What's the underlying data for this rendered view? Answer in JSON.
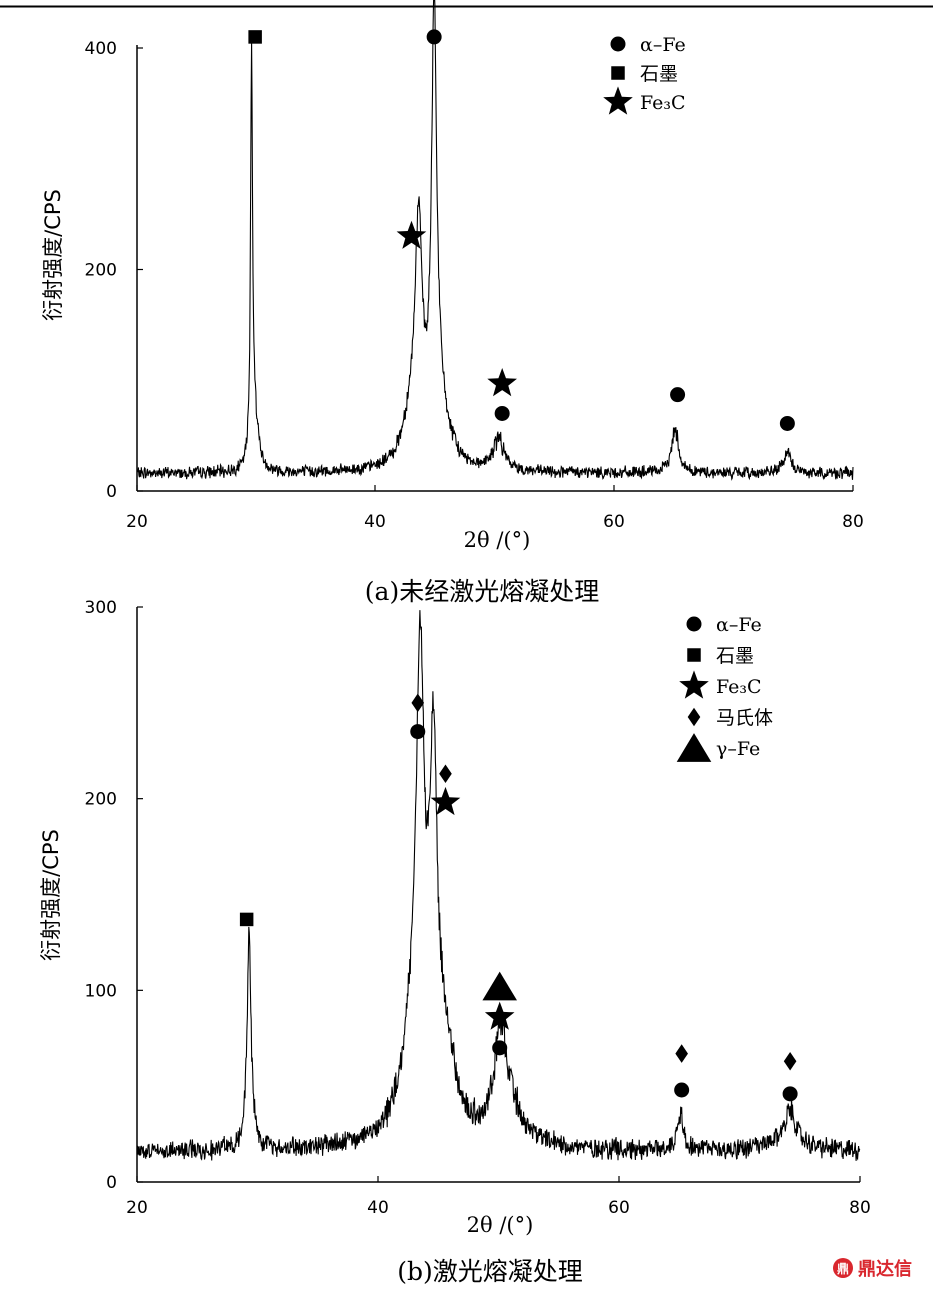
{
  "chart_data": [
    {
      "id": "a",
      "type": "line",
      "caption": "(a)未经激光熔凝处理",
      "xlabel": "2θ /(°)",
      "ylabel": "衍射强度/CPS",
      "xlim": [
        20,
        80
      ],
      "ylim": [
        0,
        400
      ],
      "xticks": [
        20,
        40,
        60,
        80
      ],
      "yticks": [
        0,
        200,
        400
      ],
      "grid": false,
      "legend_position": "top-right",
      "legend": [
        {
          "marker": "circle",
          "label": "α–Fe"
        },
        {
          "marker": "square",
          "label": "石墨"
        },
        {
          "marker": "star",
          "label": "Fe₃C"
        }
      ],
      "baseline": 16,
      "peaks": [
        {
          "x": 29.6,
          "height": 368,
          "width": 0.1
        },
        {
          "x": 29.9,
          "height": 44,
          "width": 0.35
        },
        {
          "x": 43.6,
          "height": 192,
          "width": 0.35
        },
        {
          "x": 43.0,
          "height": 40,
          "width": 0.9
        },
        {
          "x": 44.9,
          "height": 364,
          "width": 0.25
        },
        {
          "x": 45.2,
          "height": 60,
          "width": 0.9
        },
        {
          "x": 50.3,
          "height": 28,
          "width": 0.55
        },
        {
          "x": 65.1,
          "height": 40,
          "width": 0.35
        },
        {
          "x": 74.5,
          "height": 18,
          "width": 0.4
        }
      ],
      "annotations": [
        {
          "marker": "square",
          "x": 29.9,
          "y": 410
        },
        {
          "marker": "circle",
          "x": 44.9,
          "y": 410
        },
        {
          "marker": "star",
          "x": 43.0,
          "y": 230
        },
        {
          "marker": "star",
          "x": 50.6,
          "y": 97
        },
        {
          "marker": "circle",
          "x": 50.6,
          "y": 70
        },
        {
          "marker": "circle",
          "x": 65.3,
          "y": 87
        },
        {
          "marker": "circle",
          "x": 74.5,
          "y": 61
        }
      ]
    },
    {
      "id": "b",
      "type": "line",
      "caption": "(b)激光熔凝处理",
      "xlabel": "2θ /(°)",
      "ylabel": "衍射强度/CPS",
      "xlim": [
        20,
        80
      ],
      "ylim": [
        0,
        300
      ],
      "xticks": [
        20,
        40,
        60,
        80
      ],
      "yticks": [
        0,
        100,
        200,
        300
      ],
      "grid": false,
      "legend_position": "top-right",
      "legend": [
        {
          "marker": "circle",
          "label": "α–Fe"
        },
        {
          "marker": "square",
          "label": "石墨"
        },
        {
          "marker": "star",
          "label": "Fe₃C"
        },
        {
          "marker": "diamond",
          "label": "马氏体"
        },
        {
          "marker": "triangle",
          "label": "γ–Fe"
        }
      ],
      "baseline": 16,
      "peaks": [
        {
          "x": 29.3,
          "height": 108,
          "width": 0.22
        },
        {
          "x": 43.5,
          "height": 196,
          "width": 0.4
        },
        {
          "x": 43.2,
          "height": 60,
          "width": 1.3
        },
        {
          "x": 44.6,
          "height": 160,
          "width": 0.35
        },
        {
          "x": 45.5,
          "height": 40,
          "width": 1.1
        },
        {
          "x": 50.2,
          "height": 52,
          "width": 0.65
        },
        {
          "x": 51.0,
          "height": 14,
          "width": 1.3
        },
        {
          "x": 65.1,
          "height": 20,
          "width": 0.3
        },
        {
          "x": 74.2,
          "height": 16,
          "width": 0.5
        },
        {
          "x": 74.0,
          "height": 6,
          "width": 1.5
        }
      ],
      "annotations": [
        {
          "marker": "square",
          "x": 29.1,
          "y": 137
        },
        {
          "marker": "diamond",
          "x": 43.3,
          "y": 250
        },
        {
          "marker": "circle",
          "x": 43.3,
          "y": 235
        },
        {
          "marker": "diamond",
          "x": 45.6,
          "y": 213
        },
        {
          "marker": "star",
          "x": 45.6,
          "y": 198
        },
        {
          "marker": "triangle",
          "x": 50.1,
          "y": 102
        },
        {
          "marker": "star",
          "x": 50.1,
          "y": 86
        },
        {
          "marker": "circle",
          "x": 50.1,
          "y": 70
        },
        {
          "marker": "diamond",
          "x": 65.2,
          "y": 67
        },
        {
          "marker": "circle",
          "x": 65.2,
          "y": 48
        },
        {
          "marker": "diamond",
          "x": 74.2,
          "y": 63
        },
        {
          "marker": "circle",
          "x": 74.2,
          "y": 46
        }
      ]
    }
  ],
  "watermark": {
    "label": "鼎达信",
    "color": "#d9272e"
  }
}
